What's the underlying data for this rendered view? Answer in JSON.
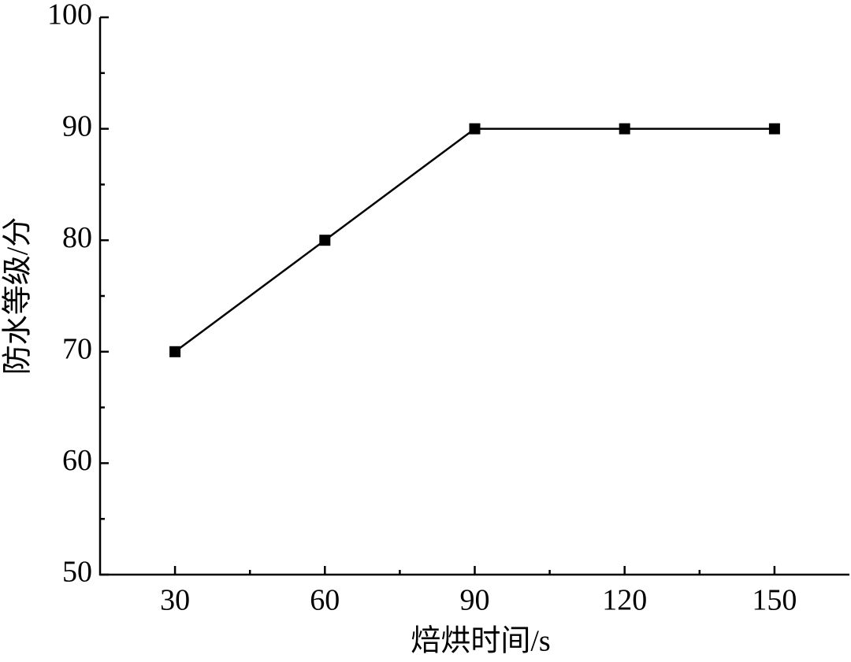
{
  "chart_data": {
    "type": "line",
    "x_label": "焙烘时间/s",
    "y_label": "防水等级/分",
    "x": [
      30,
      60,
      90,
      120,
      150
    ],
    "series": [
      {
        "values": [
          70,
          80,
          90,
          90,
          90
        ],
        "color": "#000000",
        "marker": "square"
      }
    ],
    "xlim": [
      15,
      165
    ],
    "xticks": [
      30,
      60,
      90,
      120,
      150
    ],
    "ylim": [
      50,
      100
    ],
    "yticks": [
      50,
      60,
      70,
      80,
      90,
      100
    ],
    "grid": false
  }
}
